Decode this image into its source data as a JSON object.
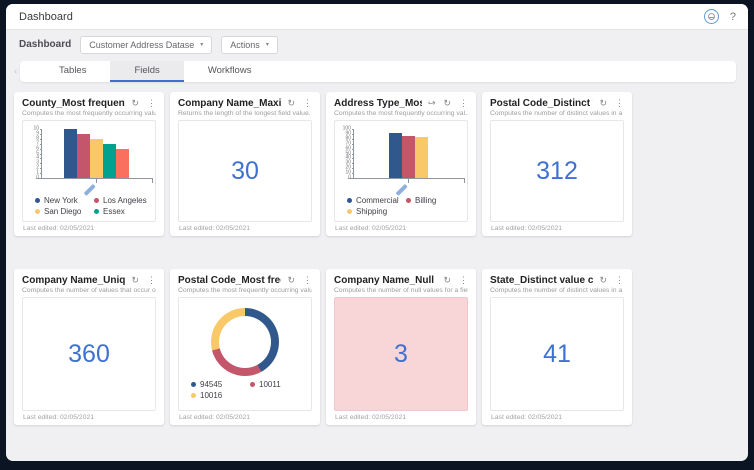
{
  "topbar": {
    "title": "Dashboard",
    "help_label": "?"
  },
  "toolbar": {
    "label": "Dashboard",
    "dataset_selector": "Customer Address Datase",
    "actions_label": "Actions"
  },
  "tabs": [
    {
      "label": "Tables",
      "active": false
    },
    {
      "label": "Fields",
      "active": true
    },
    {
      "label": "Workflows",
      "active": false
    }
  ],
  "icons": {
    "refresh": "↻",
    "kebab": "⋮",
    "share": "↪",
    "caret": "▾",
    "chevron_left": "‹"
  },
  "colors": {
    "accent_blue": "#3e71d3",
    "tab_underline": "#3e6ed0",
    "bar_blue": "#30588c",
    "bar_red": "#c4566b",
    "bar_yellow": "#f8c869",
    "bar_teal": "#00a18e",
    "bar_salmon": "#f9705e",
    "null_pink": "#f8d6d8"
  },
  "cards": [
    {
      "title": "County_Most frequent values",
      "subtitle": "Computes the most frequently occurring values for ...",
      "type": "bar",
      "footer": "Last edited: 02/05/2021"
    },
    {
      "title": "Company Name_Maximum ...",
      "subtitle": "Returns the length of the longest field value.",
      "type": "number",
      "value": "30",
      "footer": "Last edited: 02/05/2021"
    },
    {
      "title": "Address Type_Most fre...",
      "subtitle": "Computes the most frequently occurring val...",
      "type": "bar",
      "footer": "Last edited: 02/05/2021"
    },
    {
      "title": "Postal Code_Distinct value ...",
      "subtitle": "Computes the number of distinct values in a given ...",
      "type": "number",
      "value": "312",
      "footer": "Last edited: 02/05/2021"
    },
    {
      "title": "Company Name_Unique co...",
      "subtitle": "Computes the number of values that occur only once.",
      "type": "number",
      "value": "360",
      "footer": "Last edited: 02/05/2021"
    },
    {
      "title": "Postal Code_Most frequent...",
      "subtitle": "Computes the most frequently occurring values for ...",
      "type": "donut",
      "footer": "Last edited: 02/05/2021"
    },
    {
      "title": "Company Name_Null count",
      "subtitle": "Computes the number of null values for a field.",
      "type": "number",
      "value": "3",
      "null_highlight": true,
      "footer": "Last edited: 02/05/2021"
    },
    {
      "title": "State_Distinct value count",
      "subtitle": "Computes the number of distinct values in a given ...",
      "type": "number",
      "value": "41",
      "footer": "Last edited: 02/05/2021"
    }
  ],
  "chart_data": [
    {
      "type": "bar",
      "title": "County_Most frequent values",
      "categories": [
        "New York",
        "Los Angeles",
        "San Diego",
        "Essex",
        ""
      ],
      "values": [
        10,
        9,
        8,
        7,
        6
      ],
      "bar_colors": [
        "#30588c",
        "#c4566b",
        "#f8c869",
        "#00a18e",
        "#f9705e"
      ],
      "ylim": [
        0,
        10
      ],
      "ytick_step": 1,
      "legend": [
        {
          "label": "New York",
          "color": "#30588c"
        },
        {
          "label": "Los Angeles",
          "color": "#c4566b"
        },
        {
          "label": "San Diego",
          "color": "#f8c869"
        },
        {
          "label": "Essex",
          "color": "#00a18e"
        }
      ]
    },
    {
      "type": "bar",
      "title": "Address Type_Most frequent values",
      "categories": [
        "Commercial",
        "Billing",
        "Shipping"
      ],
      "values": [
        92,
        85,
        84
      ],
      "bar_colors": [
        "#30588c",
        "#c4566b",
        "#f8c869"
      ],
      "ylim": [
        0,
        100
      ],
      "ytick_step": 10,
      "legend": [
        {
          "label": "Commercial",
          "color": "#30588c"
        },
        {
          "label": "Billing",
          "color": "#c4566b"
        },
        {
          "label": "Shipping",
          "color": "#f8c869"
        }
      ]
    },
    {
      "type": "donut",
      "title": "Postal Code_Most frequent values",
      "labels": [
        "94545",
        "10011",
        "10016"
      ],
      "values_pct": [
        42,
        29,
        29
      ],
      "slice_colors": [
        "#30588c",
        "#c4566b",
        "#f8c869"
      ],
      "legend": [
        {
          "label": "94545",
          "color": "#30588c"
        },
        {
          "label": "10011",
          "color": "#c4566b"
        },
        {
          "label": "10016",
          "color": "#f8c869"
        }
      ]
    }
  ]
}
